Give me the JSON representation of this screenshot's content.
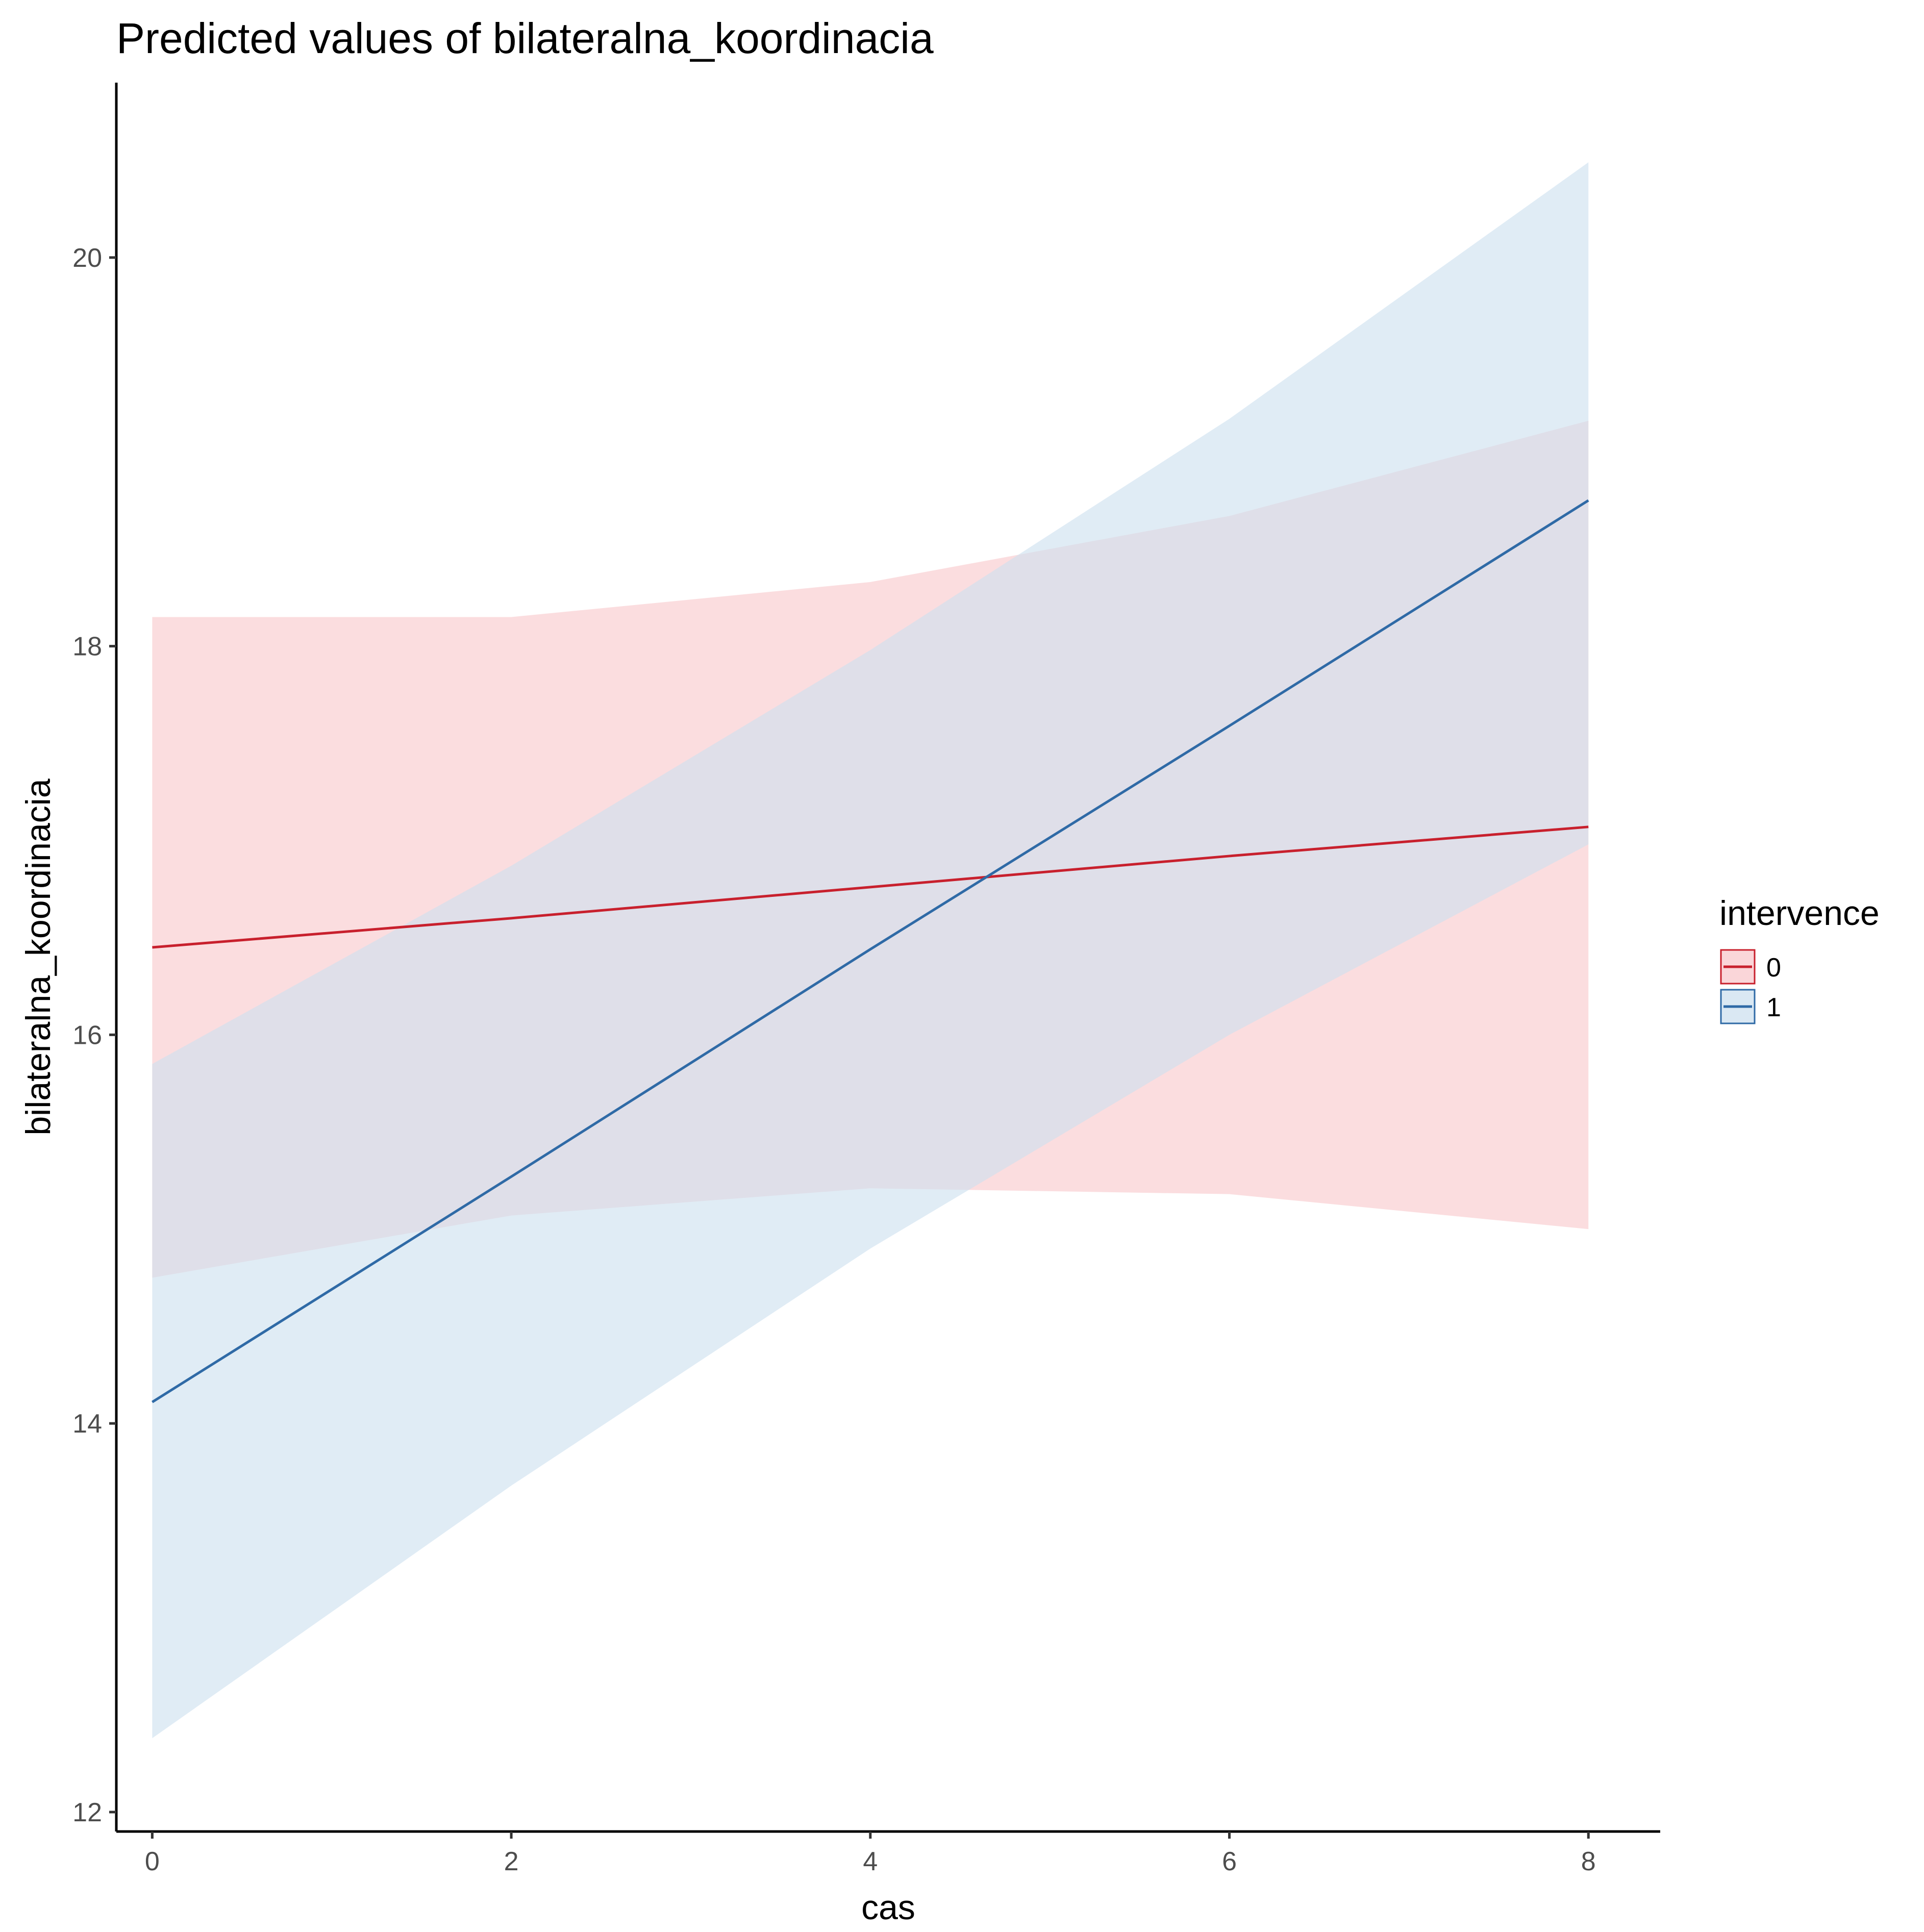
{
  "chart_data": {
    "type": "line",
    "title": "Predicted values of bilateralna_koordinacia",
    "xlabel": "cas",
    "ylabel": "bilateralna_koordinacia",
    "xlim": [
      -0.2,
      8.4
    ],
    "ylim": [
      11.9,
      20.9
    ],
    "x_ticks": [
      0,
      2,
      4,
      6,
      8
    ],
    "y_ticks": [
      12,
      14,
      16,
      18,
      20
    ],
    "x_tick_labels": [
      "0",
      "2",
      "4",
      "6",
      "8"
    ],
    "y_tick_labels": [
      "12",
      "14",
      "16",
      "18",
      "20"
    ],
    "grid": false,
    "legend": {
      "title": "intervence",
      "position": "right"
    },
    "x": [
      0,
      2,
      4,
      6,
      8
    ],
    "series": [
      {
        "name": "0",
        "color": "#c8202d",
        "fill": "#f8c8cc",
        "values": [
          16.45,
          16.6,
          16.76,
          16.92,
          17.07
        ],
        "lower": [
          14.75,
          15.07,
          15.21,
          15.18,
          15.0
        ],
        "upper": [
          18.15,
          18.15,
          18.33,
          18.67,
          19.16
        ]
      },
      {
        "name": "1",
        "color": "#2f6aa6",
        "fill": "#cde0ef",
        "values": [
          14.11,
          15.27,
          16.44,
          17.59,
          18.75
        ],
        "lower": [
          12.38,
          13.68,
          14.9,
          16.0,
          16.98
        ],
        "upper": [
          15.85,
          16.87,
          17.98,
          19.17,
          20.49
        ]
      }
    ]
  }
}
